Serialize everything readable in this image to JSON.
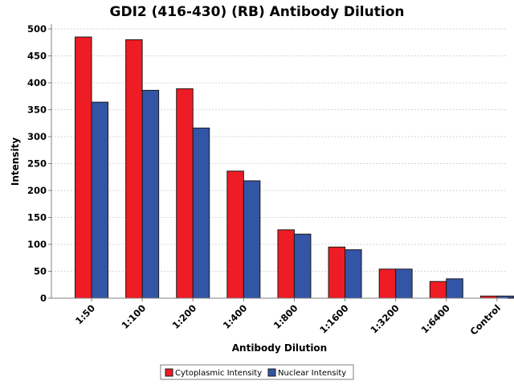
{
  "chart_data": {
    "type": "bar",
    "title": "GDI2 (416-430) (RB) Antibody Dilution",
    "xlabel": "Antibody Dilution",
    "ylabel": "Intensity",
    "ylim": [
      0,
      500
    ],
    "yticks": [
      0,
      50,
      100,
      150,
      200,
      250,
      300,
      350,
      400,
      450,
      500
    ],
    "grid": true,
    "legend_position": "bottom",
    "categories": [
      "1:50",
      "1:100",
      "1:200",
      "1:400",
      "1:800",
      "1:1600",
      "1:3200",
      "1:6400",
      "Control"
    ],
    "series": [
      {
        "name": "Cytoplasmic Intensity",
        "color": "#ee1c24",
        "values": [
          485,
          480,
          389,
          236,
          127,
          95,
          54,
          31,
          4
        ]
      },
      {
        "name": "Nuclear Intensity",
        "color": "#3355a6",
        "values": [
          364,
          386,
          316,
          218,
          119,
          90,
          54,
          36,
          4
        ]
      }
    ]
  }
}
